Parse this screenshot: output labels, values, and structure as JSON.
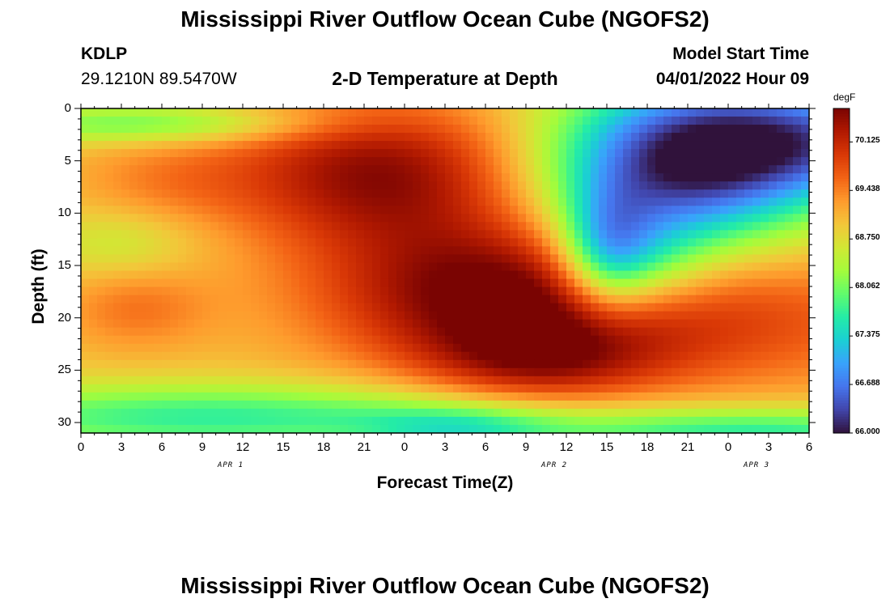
{
  "titles": {
    "main": "Mississippi River Outflow Ocean Cube (NGOFS2)",
    "second": "Mississippi River Outflow Ocean Cube (NGOFS2)"
  },
  "header": {
    "station": "KDLP",
    "coords": "29.1210N  89.5470W",
    "subtitle": "2-D Temperature at Depth",
    "model_label": "Model Start Time",
    "model_time": "04/01/2022 Hour 09"
  },
  "chart_data": {
    "type": "heatmap",
    "title": "2-D Temperature at Depth",
    "xlabel": "Forecast Time(Z)",
    "ylabel": "Depth (ft)",
    "x_tick_labels": [
      "0",
      "3",
      "6",
      "9",
      "12",
      "15",
      "18",
      "21",
      "0",
      "3",
      "6",
      "9",
      "12",
      "15",
      "18",
      "21",
      "0",
      "3",
      "6"
    ],
    "x_date_labels": [
      {
        "label": "APR 1",
        "tick_index": 3.7
      },
      {
        "label": "APR 2",
        "tick_index": 11.7
      },
      {
        "label": "APR 3",
        "tick_index": 16.7
      }
    ],
    "y_ticks": [
      0,
      5,
      10,
      15,
      20,
      25,
      30
    ],
    "ylim": [
      0,
      31
    ],
    "y_reversed": true,
    "colorbar": {
      "unit": "degF",
      "min": 66.0,
      "max": 70.6,
      "labels": [
        "70.125",
        "69.438",
        "68.750",
        "68.062",
        "67.375",
        "66.688",
        "66.000"
      ],
      "label_values": [
        70.125,
        69.438,
        68.75,
        68.062,
        67.375,
        66.688,
        66.0
      ],
      "colors": [
        "#30123b",
        "#4145ab",
        "#4675ed",
        "#39a2fc",
        "#1bcfd4",
        "#24eca6",
        "#61fc6c",
        "#a4fc3b",
        "#d1e834",
        "#f3c63a",
        "#fe9b2d",
        "#f36315",
        "#d93806",
        "#b11901",
        "#7a0402"
      ]
    },
    "grid": false,
    "legend": "colorbar-right"
  }
}
